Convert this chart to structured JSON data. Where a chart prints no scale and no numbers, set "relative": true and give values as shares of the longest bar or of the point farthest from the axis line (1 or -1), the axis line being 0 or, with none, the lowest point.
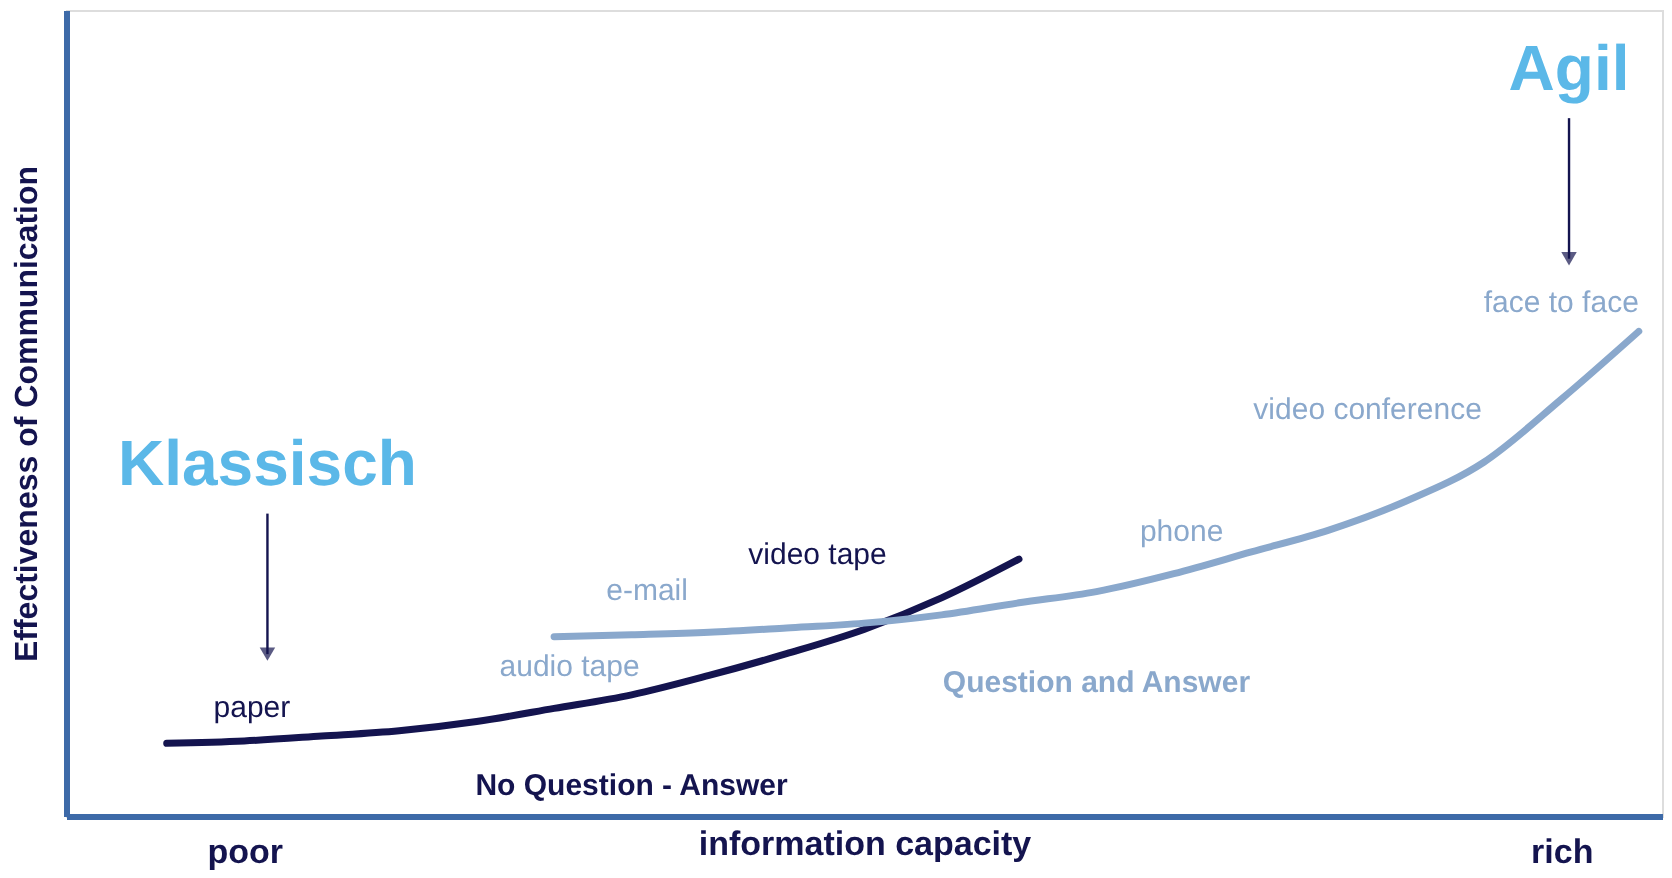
{
  "chart_data": {
    "type": "line",
    "relative": true,
    "xlabel": "information capacity",
    "ylabel": "Effectiveness of Communication",
    "categories": [
      null,
      null,
      "poor",
      null,
      null,
      null,
      null,
      null,
      null,
      null,
      null,
      null,
      null,
      null,
      null,
      null,
      null,
      null,
      null,
      "rich",
      null
    ],
    "grid": false,
    "legend": false,
    "marker": "none",
    "line_style": "solid",
    "series": [
      {
        "name": "No Question - Answer",
        "color": "#14144f",
        "values": [
          null,
          0.15,
          0.155,
          0.165,
          0.176,
          0.195,
          0.222,
          0.25,
          0.29,
          0.335,
          0.385,
          0.45,
          0.53,
          null,
          null,
          null,
          null,
          null,
          null,
          null,
          null
        ]
      },
      {
        "name": "Question and Answer",
        "color": "#8aa8cc",
        "values": [
          null,
          null,
          null,
          null,
          null,
          null,
          0.37,
          0.374,
          0.379,
          0.388,
          0.398,
          0.415,
          0.44,
          0.463,
          0.5,
          0.545,
          0.59,
          0.65,
          0.73,
          0.86,
          1.0
        ]
      }
    ],
    "annotations": [
      "Klassisch",
      "Agil",
      "paper",
      "audio tape",
      "video tape",
      "e-mail",
      "phone",
      "video conference",
      "face to face"
    ]
  }
}
